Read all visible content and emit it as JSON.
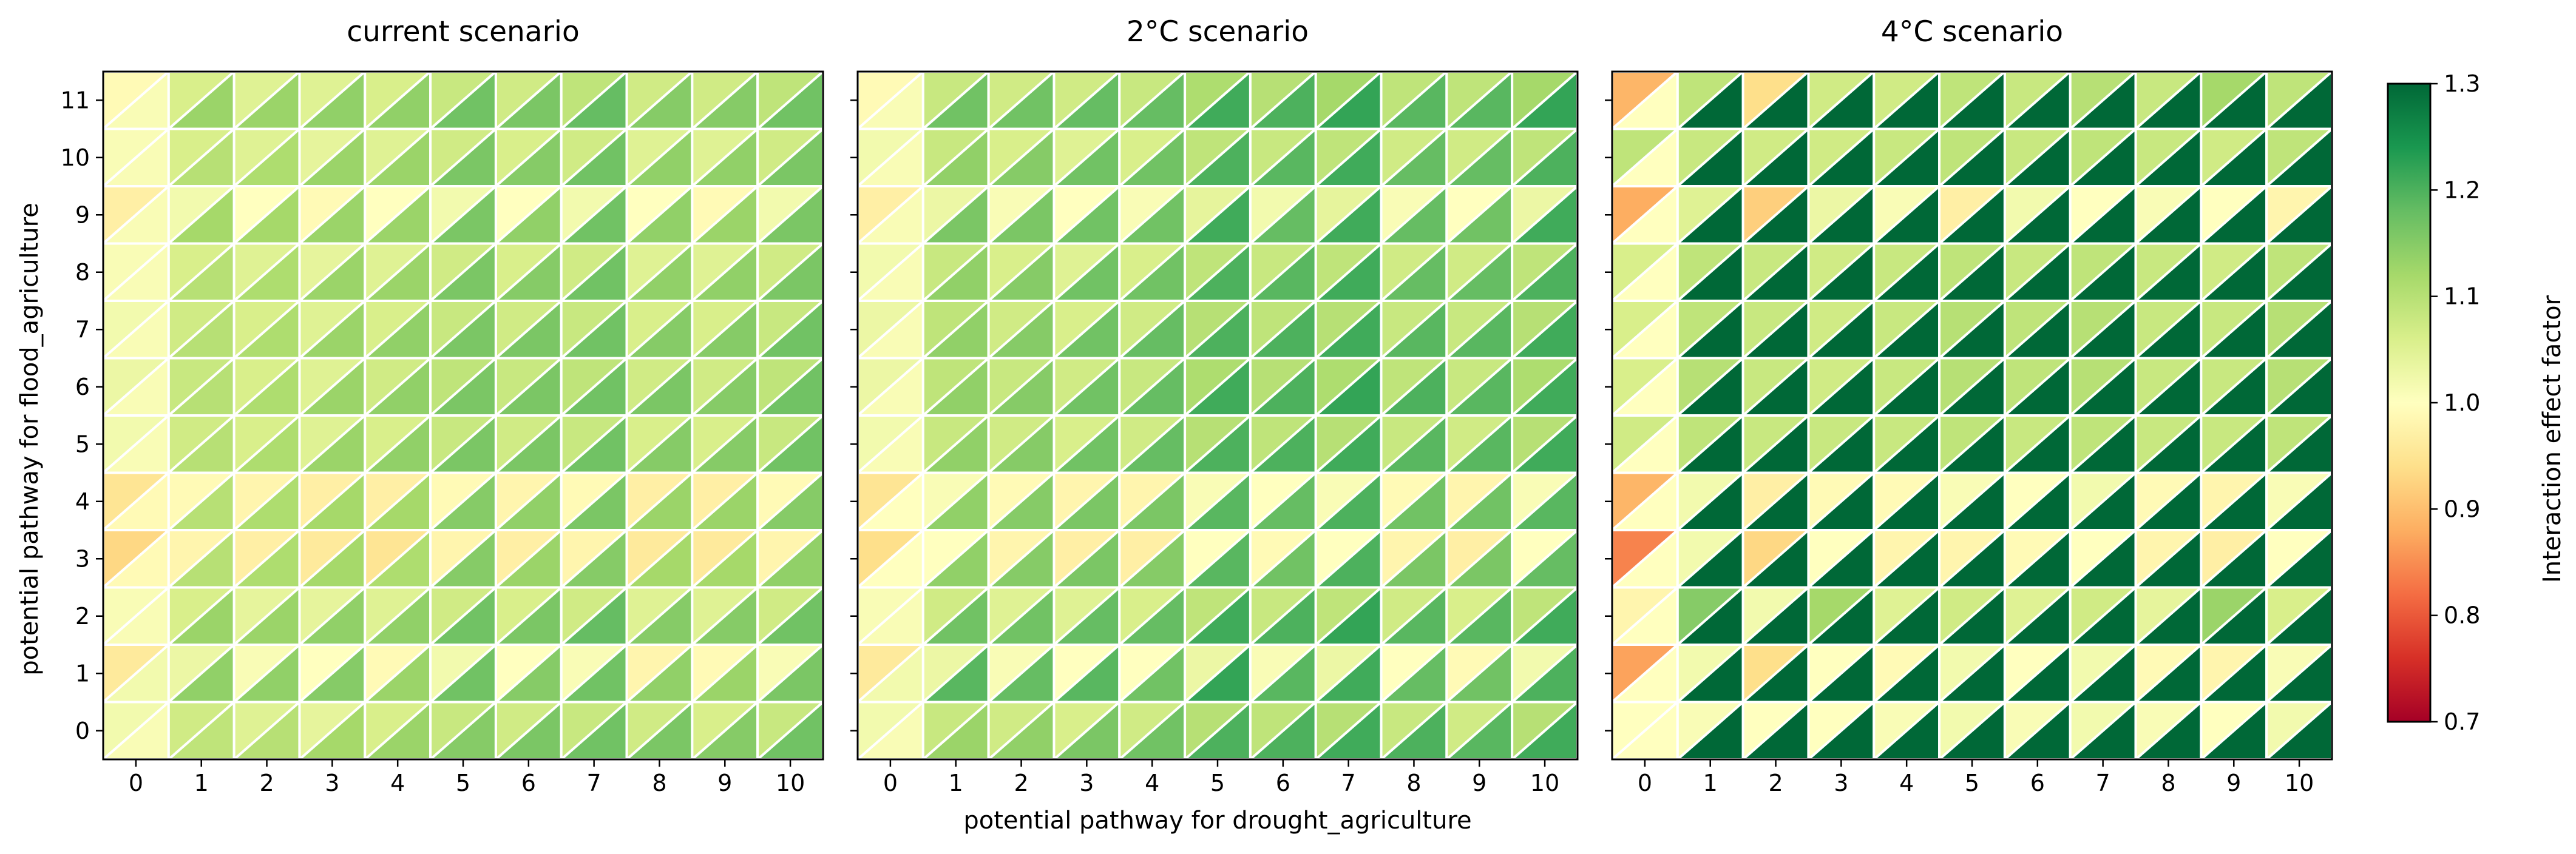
{
  "chart_data": {
    "type": "heatmap",
    "cell_layout": "each grid cell is split diagonally into an upper-left triangle and a lower-right triangle, each colored by its own interaction effect factor",
    "x_label": "potential pathway for drought_agriculture",
    "y_label": "potential pathway for flood_agriculture",
    "x_categories": [
      "0",
      "1",
      "2",
      "3",
      "4",
      "5",
      "6",
      "7",
      "8",
      "9",
      "10"
    ],
    "y_categories": [
      "0",
      "1",
      "2",
      "3",
      "4",
      "5",
      "6",
      "7",
      "8",
      "9",
      "10",
      "11"
    ],
    "colormap": "RdYlGn",
    "colorbar": {
      "label": "Interaction effect factor",
      "vmin": 0.7,
      "vmax": 1.3,
      "ticks": [
        "0.7",
        "0.8",
        "0.9",
        "1.0",
        "1.1",
        "1.2",
        "1.3"
      ]
    },
    "panels": [
      {
        "title": "current scenario",
        "upper_left_rows": [
          [
            1.02,
            1.07,
            1.05,
            1.04,
            1.06,
            1.08,
            1.07,
            1.08,
            1.07,
            1.06,
            1.08
          ],
          [
            0.96,
            1.03,
            1.01,
            1.0,
            0.99,
            1.02,
            1.0,
            1.01,
            0.98,
            0.99,
            1.01
          ],
          [
            1.01,
            1.06,
            1.04,
            1.04,
            1.05,
            1.07,
            1.06,
            1.07,
            1.05,
            1.05,
            1.07
          ],
          [
            0.93,
            0.98,
            0.97,
            0.96,
            0.95,
            0.98,
            0.97,
            0.98,
            0.96,
            0.96,
            0.98
          ],
          [
            0.95,
            0.99,
            0.98,
            0.97,
            0.97,
            0.99,
            0.98,
            0.99,
            0.97,
            0.97,
            0.99
          ],
          [
            1.02,
            1.07,
            1.06,
            1.05,
            1.06,
            1.08,
            1.07,
            1.08,
            1.06,
            1.06,
            1.08
          ],
          [
            1.03,
            1.08,
            1.06,
            1.05,
            1.07,
            1.09,
            1.08,
            1.09,
            1.07,
            1.07,
            1.09
          ],
          [
            1.02,
            1.07,
            1.06,
            1.05,
            1.06,
            1.08,
            1.07,
            1.08,
            1.06,
            1.06,
            1.08
          ],
          [
            1.01,
            1.06,
            1.05,
            1.04,
            1.05,
            1.07,
            1.06,
            1.07,
            1.05,
            1.05,
            1.07
          ],
          [
            0.97,
            1.02,
            1.0,
            0.99,
            1.0,
            1.02,
            1.0,
            1.02,
            1.0,
            0.99,
            1.02
          ],
          [
            1.01,
            1.06,
            1.05,
            1.04,
            1.05,
            1.07,
            1.06,
            1.07,
            1.05,
            1.05,
            1.07
          ],
          [
            0.99,
            1.06,
            1.05,
            1.05,
            1.06,
            1.08,
            1.07,
            1.09,
            1.07,
            1.07,
            1.09
          ]
        ],
        "lower_right_rows": [
          [
            1.01,
            1.09,
            1.1,
            1.12,
            1.13,
            1.15,
            1.16,
            1.17,
            1.16,
            1.15,
            1.17
          ],
          [
            1.02,
            1.14,
            1.14,
            1.15,
            1.13,
            1.17,
            1.15,
            1.17,
            1.14,
            1.13,
            1.16
          ],
          [
            1.01,
            1.13,
            1.13,
            1.14,
            1.14,
            1.17,
            1.16,
            1.18,
            1.15,
            1.15,
            1.17
          ],
          [
            0.99,
            1.1,
            1.11,
            1.12,
            1.11,
            1.15,
            1.13,
            1.15,
            1.12,
            1.12,
            1.14
          ],
          [
            0.99,
            1.1,
            1.11,
            1.12,
            1.12,
            1.15,
            1.14,
            1.16,
            1.13,
            1.13,
            1.15
          ],
          [
            1.01,
            1.1,
            1.11,
            1.13,
            1.14,
            1.16,
            1.16,
            1.17,
            1.15,
            1.15,
            1.17
          ],
          [
            1.01,
            1.1,
            1.11,
            1.13,
            1.14,
            1.16,
            1.16,
            1.17,
            1.16,
            1.15,
            1.17
          ],
          [
            1.01,
            1.1,
            1.11,
            1.13,
            1.14,
            1.16,
            1.16,
            1.17,
            1.15,
            1.15,
            1.17
          ],
          [
            1.01,
            1.1,
            1.11,
            1.13,
            1.13,
            1.16,
            1.15,
            1.17,
            1.14,
            1.14,
            1.16
          ],
          [
            1.01,
            1.12,
            1.12,
            1.13,
            1.13,
            1.16,
            1.14,
            1.17,
            1.14,
            1.13,
            1.16
          ],
          [
            1.01,
            1.1,
            1.11,
            1.13,
            1.13,
            1.16,
            1.15,
            1.17,
            1.14,
            1.14,
            1.16
          ],
          [
            1.01,
            1.13,
            1.13,
            1.14,
            1.14,
            1.17,
            1.16,
            1.18,
            1.15,
            1.15,
            1.17
          ]
        ]
      },
      {
        "title": "2°C scenario",
        "upper_left_rows": [
          [
            1.02,
            1.08,
            1.07,
            1.06,
            1.07,
            1.1,
            1.09,
            1.1,
            1.08,
            1.07,
            1.1
          ],
          [
            0.96,
            1.03,
            1.01,
            1.0,
            1.0,
            1.03,
            1.01,
            1.03,
            1.0,
            0.99,
            1.02
          ],
          [
            1.01,
            1.07,
            1.05,
            1.05,
            1.06,
            1.09,
            1.08,
            1.09,
            1.07,
            1.06,
            1.09
          ],
          [
            0.94,
            1.0,
            0.98,
            0.97,
            0.97,
            1.0,
            0.99,
            1.0,
            0.98,
            0.97,
            1.0
          ],
          [
            0.95,
            1.01,
            0.99,
            0.98,
            0.98,
            1.01,
            1.0,
            1.01,
            0.99,
            0.98,
            1.01
          ],
          [
            1.02,
            1.08,
            1.07,
            1.06,
            1.07,
            1.1,
            1.09,
            1.1,
            1.08,
            1.07,
            1.1
          ],
          [
            1.03,
            1.09,
            1.08,
            1.07,
            1.08,
            1.11,
            1.1,
            1.11,
            1.09,
            1.08,
            1.11
          ],
          [
            1.03,
            1.09,
            1.07,
            1.06,
            1.07,
            1.1,
            1.09,
            1.1,
            1.08,
            1.08,
            1.1
          ],
          [
            1.02,
            1.08,
            1.06,
            1.05,
            1.06,
            1.09,
            1.08,
            1.09,
            1.07,
            1.07,
            1.09
          ],
          [
            0.97,
            1.03,
            1.01,
            1.0,
            1.01,
            1.04,
            1.02,
            1.04,
            1.01,
            1.0,
            1.03
          ],
          [
            1.02,
            1.08,
            1.06,
            1.05,
            1.06,
            1.09,
            1.08,
            1.09,
            1.07,
            1.07,
            1.09
          ],
          [
            0.99,
            1.08,
            1.07,
            1.07,
            1.08,
            1.11,
            1.1,
            1.12,
            1.09,
            1.09,
            1.12
          ]
        ],
        "lower_right_rows": [
          [
            1.01,
            1.13,
            1.14,
            1.16,
            1.17,
            1.2,
            1.2,
            1.21,
            1.2,
            1.19,
            1.21
          ],
          [
            1.02,
            1.19,
            1.18,
            1.19,
            1.17,
            1.22,
            1.19,
            1.21,
            1.18,
            1.17,
            1.2
          ],
          [
            1.01,
            1.17,
            1.17,
            1.18,
            1.18,
            1.21,
            1.2,
            1.22,
            1.19,
            1.19,
            1.21
          ],
          [
            1.0,
            1.14,
            1.15,
            1.16,
            1.15,
            1.19,
            1.17,
            1.2,
            1.16,
            1.16,
            1.18
          ],
          [
            1.0,
            1.14,
            1.15,
            1.16,
            1.16,
            1.19,
            1.18,
            1.2,
            1.17,
            1.17,
            1.19
          ],
          [
            1.01,
            1.14,
            1.15,
            1.17,
            1.18,
            1.2,
            1.2,
            1.21,
            1.19,
            1.19,
            1.21
          ],
          [
            1.01,
            1.14,
            1.15,
            1.17,
            1.18,
            1.21,
            1.2,
            1.22,
            1.2,
            1.19,
            1.21
          ],
          [
            1.01,
            1.14,
            1.15,
            1.17,
            1.18,
            1.2,
            1.2,
            1.21,
            1.19,
            1.19,
            1.21
          ],
          [
            1.01,
            1.14,
            1.15,
            1.17,
            1.17,
            1.2,
            1.19,
            1.21,
            1.18,
            1.18,
            1.2
          ],
          [
            1.01,
            1.16,
            1.16,
            1.17,
            1.17,
            1.21,
            1.18,
            1.21,
            1.18,
            1.17,
            1.21
          ],
          [
            1.01,
            1.14,
            1.15,
            1.17,
            1.17,
            1.2,
            1.19,
            1.21,
            1.18,
            1.18,
            1.2
          ],
          [
            1.01,
            1.17,
            1.17,
            1.18,
            1.18,
            1.21,
            1.2,
            1.22,
            1.19,
            1.19,
            1.22
          ]
        ]
      },
      {
        "title": "4°C scenario",
        "upper_left_rows": [
          [
            1.0,
            1.01,
            1.0,
            1.0,
            1.01,
            1.02,
            1.01,
            1.02,
            1.01,
            1.0,
            1.02
          ],
          [
            0.87,
            1.02,
            0.94,
            1.0,
            0.99,
            1.02,
            1.0,
            1.02,
            0.99,
            0.98,
            1.01
          ],
          [
            0.98,
            1.15,
            1.02,
            1.12,
            1.05,
            1.07,
            1.05,
            1.07,
            1.04,
            1.13,
            1.06
          ],
          [
            0.84,
            1.02,
            0.93,
            1.0,
            0.98,
            0.98,
            0.99,
            1.0,
            0.98,
            0.97,
            1.0
          ],
          [
            0.89,
            1.02,
            0.97,
            0.99,
            0.99,
            1.01,
            1.0,
            1.02,
            0.99,
            0.98,
            1.01
          ],
          [
            1.07,
            1.09,
            1.08,
            1.08,
            1.08,
            1.09,
            1.08,
            1.09,
            1.08,
            1.08,
            1.09
          ],
          [
            1.06,
            1.1,
            1.08,
            1.07,
            1.08,
            1.1,
            1.09,
            1.1,
            1.08,
            1.08,
            1.1
          ],
          [
            1.06,
            1.09,
            1.08,
            1.07,
            1.08,
            1.1,
            1.09,
            1.1,
            1.08,
            1.08,
            1.1
          ],
          [
            1.06,
            1.09,
            1.08,
            1.07,
            1.08,
            1.09,
            1.08,
            1.09,
            1.08,
            1.07,
            1.09
          ],
          [
            0.88,
            1.05,
            0.92,
            1.03,
            1.01,
            0.97,
            1.02,
            1.0,
            1.01,
            1.0,
            0.98
          ],
          [
            1.09,
            1.08,
            1.07,
            1.07,
            1.08,
            1.09,
            1.08,
            1.09,
            1.08,
            1.07,
            1.09
          ],
          [
            0.89,
            1.09,
            0.94,
            1.07,
            1.07,
            1.09,
            1.08,
            1.1,
            1.08,
            1.12,
            1.09
          ]
        ],
        "lower_right_rows": [
          [
            1.0,
            1.3,
            1.3,
            1.3,
            1.3,
            1.3,
            1.3,
            1.3,
            1.3,
            1.3,
            1.3
          ],
          [
            1.0,
            1.3,
            1.3,
            1.3,
            1.3,
            1.3,
            1.3,
            1.3,
            1.3,
            1.3,
            1.3
          ],
          [
            1.0,
            1.3,
            1.3,
            1.3,
            1.3,
            1.3,
            1.3,
            1.3,
            1.3,
            1.3,
            1.3
          ],
          [
            1.0,
            1.3,
            1.3,
            1.3,
            1.3,
            1.3,
            1.3,
            1.3,
            1.3,
            1.3,
            1.3
          ],
          [
            1.0,
            1.3,
            1.3,
            1.3,
            1.3,
            1.3,
            1.3,
            1.3,
            1.3,
            1.3,
            1.3
          ],
          [
            1.0,
            1.3,
            1.3,
            1.3,
            1.3,
            1.3,
            1.3,
            1.3,
            1.3,
            1.3,
            1.3
          ],
          [
            1.0,
            1.3,
            1.3,
            1.3,
            1.3,
            1.3,
            1.3,
            1.3,
            1.3,
            1.3,
            1.3
          ],
          [
            1.0,
            1.3,
            1.3,
            1.3,
            1.3,
            1.3,
            1.3,
            1.3,
            1.3,
            1.3,
            1.3
          ],
          [
            1.0,
            1.3,
            1.3,
            1.3,
            1.3,
            1.3,
            1.3,
            1.3,
            1.3,
            1.3,
            1.3
          ],
          [
            1.0,
            1.3,
            1.3,
            1.3,
            1.3,
            1.3,
            1.3,
            1.3,
            1.3,
            1.3,
            1.3
          ],
          [
            1.0,
            1.3,
            1.3,
            1.3,
            1.3,
            1.3,
            1.3,
            1.3,
            1.3,
            1.3,
            1.3
          ],
          [
            1.0,
            1.3,
            1.3,
            1.3,
            1.3,
            1.3,
            1.3,
            1.3,
            1.3,
            1.3,
            1.3
          ]
        ]
      }
    ]
  }
}
